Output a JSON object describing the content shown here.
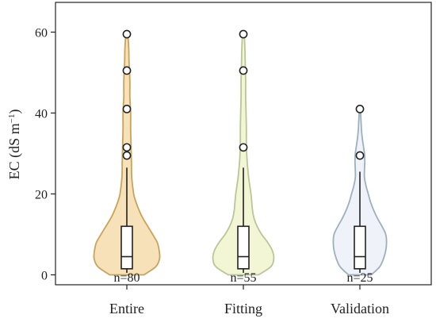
{
  "chart_data": {
    "type": "violin",
    "title": "",
    "xlabel": "",
    "ylabel_main": "EC (dS m",
    "ylabel_sup": "−1",
    "ylabel_close": ")",
    "ylim": [
      -2,
      67
    ],
    "yticks": [
      0,
      20,
      40,
      60
    ],
    "yticklabels": [
      "0",
      "20",
      "40",
      "60"
    ],
    "categories": [
      "Entire",
      "Fitting",
      "Validation"
    ],
    "series": [
      {
        "fill": "#f6deb0",
        "stroke": "#c9a35c",
        "counts_label": "n=80",
        "box": {
          "q1": 1.5,
          "median": 4.5,
          "q3": 12.0,
          "whisker_low": 0.5,
          "whisker_high": 26.5
        },
        "outliers": [
          29.5,
          31.5,
          41.0,
          50.5,
          59.5
        ],
        "density": [
          [
            0,
            0.45
          ],
          [
            2,
            0.76
          ],
          [
            4,
            0.86
          ],
          [
            6,
            0.85
          ],
          [
            8,
            0.8
          ],
          [
            10,
            0.68
          ],
          [
            12,
            0.55
          ],
          [
            14,
            0.42
          ],
          [
            16,
            0.32
          ],
          [
            18,
            0.24
          ],
          [
            20,
            0.18
          ],
          [
            24,
            0.13
          ],
          [
            28,
            0.12
          ],
          [
            32,
            0.11
          ],
          [
            36,
            0.1
          ],
          [
            40,
            0.1
          ],
          [
            44,
            0.08
          ],
          [
            48,
            0.08
          ],
          [
            52,
            0.06
          ],
          [
            56,
            0.05
          ],
          [
            59.5,
            0.02
          ]
        ]
      },
      {
        "fill": "#f1f5d0",
        "stroke": "#b9c697",
        "counts_label": "n=55",
        "box": {
          "q1": 1.5,
          "median": 4.5,
          "q3": 12.0,
          "whisker_low": 0.5,
          "whisker_high": 26.5
        },
        "outliers": [
          31.5,
          50.5,
          59.5
        ],
        "density": [
          [
            0,
            0.4
          ],
          [
            2,
            0.72
          ],
          [
            4,
            0.8
          ],
          [
            6,
            0.76
          ],
          [
            8,
            0.64
          ],
          [
            10,
            0.48
          ],
          [
            12,
            0.36
          ],
          [
            14,
            0.28
          ],
          [
            16,
            0.24
          ],
          [
            18,
            0.22
          ],
          [
            20,
            0.2
          ],
          [
            24,
            0.14
          ],
          [
            28,
            0.1
          ],
          [
            32,
            0.08
          ],
          [
            36,
            0.08
          ],
          [
            40,
            0.07
          ],
          [
            44,
            0.06
          ],
          [
            48,
            0.06
          ],
          [
            52,
            0.05
          ],
          [
            56,
            0.04
          ],
          [
            59.5,
            0.02
          ]
        ]
      },
      {
        "fill": "#eef1f8",
        "stroke": "#9cb0bd",
        "counts_label": "n=25",
        "box": {
          "q1": 1.5,
          "median": 4.5,
          "q3": 12.0,
          "whisker_low": 0.5,
          "whisker_high": 25.5
        },
        "outliers": [
          29.5,
          41.0
        ],
        "density": [
          [
            0,
            0.3
          ],
          [
            2,
            0.52
          ],
          [
            4,
            0.62
          ],
          [
            6,
            0.68
          ],
          [
            8,
            0.7
          ],
          [
            10,
            0.68
          ],
          [
            12,
            0.58
          ],
          [
            14,
            0.46
          ],
          [
            16,
            0.36
          ],
          [
            18,
            0.28
          ],
          [
            20,
            0.22
          ],
          [
            22,
            0.16
          ],
          [
            24,
            0.12
          ],
          [
            26,
            0.12
          ],
          [
            28,
            0.13
          ],
          [
            30,
            0.12
          ],
          [
            32,
            0.09
          ],
          [
            34,
            0.06
          ],
          [
            36,
            0.04
          ],
          [
            38,
            0.03
          ],
          [
            41,
            0.01
          ]
        ]
      }
    ]
  }
}
